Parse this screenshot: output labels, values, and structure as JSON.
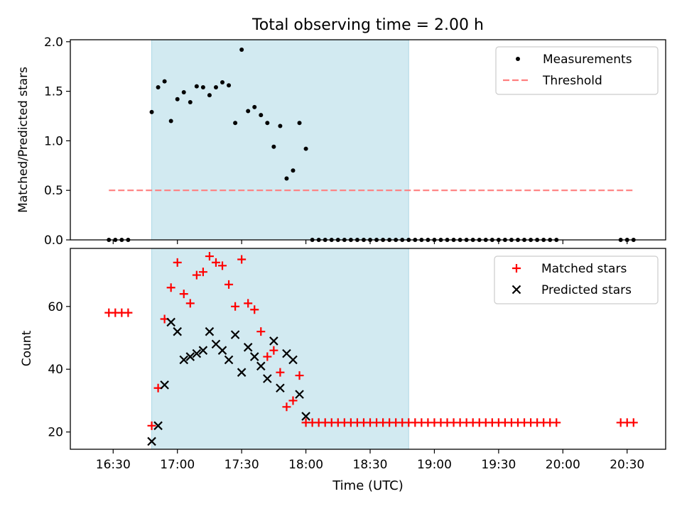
{
  "chart_data": {
    "type": "scatter",
    "title": "Total observing time = 2.00 h",
    "xlabel": "Time (UTC)",
    "x_ticks": [
      "16:30",
      "17:00",
      "17:30",
      "18:00",
      "18:30",
      "19:00",
      "19:30",
      "20:00",
      "20:30"
    ],
    "x_range": [
      "16:10",
      "20:48"
    ],
    "shaded_interval": [
      "16:48",
      "18:48"
    ],
    "shade_color": "#add8e6",
    "grid": false,
    "panels": [
      {
        "id": "ratio",
        "ylabel": "Matched/Predicted stars",
        "ylim": [
          0.0,
          2.02
        ],
        "y_ticks": [
          "0.0",
          "0.5",
          "1.0",
          "1.5",
          "2.0"
        ],
        "legend_position": "top-right",
        "threshold": {
          "name": "Threshold",
          "value": 0.5,
          "x_start": "16:28",
          "x_end": "20:33",
          "color": "#ff7f7f"
        },
        "series": [
          {
            "name": "Measurements",
            "marker": "dot",
            "color": "#000000",
            "x": [
              "16:28",
              "16:31",
              "16:34",
              "16:37",
              "16:48",
              "16:51",
              "16:54",
              "16:57",
              "17:00",
              "17:03",
              "17:06",
              "17:09",
              "17:12",
              "17:15",
              "17:18",
              "17:21",
              "17:24",
              "17:27",
              "17:30",
              "17:33",
              "17:36",
              "17:39",
              "17:42",
              "17:45",
              "17:48",
              "17:51",
              "17:54",
              "17:57",
              "18:00",
              "18:03",
              "18:06",
              "18:09",
              "18:12",
              "18:15",
              "18:18",
              "18:21",
              "18:24",
              "18:27",
              "18:30",
              "18:33",
              "18:36",
              "18:39",
              "18:42",
              "18:45",
              "18:48",
              "18:51",
              "18:54",
              "18:57",
              "19:00",
              "19:03",
              "19:06",
              "19:09",
              "19:12",
              "19:15",
              "19:18",
              "19:21",
              "19:24",
              "19:27",
              "19:30",
              "19:33",
              "19:36",
              "19:39",
              "19:42",
              "19:45",
              "19:48",
              "19:51",
              "19:54",
              "19:57",
              "20:27",
              "20:30",
              "20:33"
            ],
            "y": [
              0,
              0,
              0,
              0,
              1.29,
              1.54,
              1.6,
              1.2,
              1.42,
              1.49,
              1.39,
              1.55,
              1.54,
              1.46,
              1.54,
              1.59,
              1.56,
              1.18,
              1.92,
              1.3,
              1.34,
              1.26,
              1.18,
              0.94,
              1.15,
              0.62,
              0.7,
              1.18,
              0.92,
              0,
              0,
              0,
              0,
              0,
              0,
              0,
              0,
              0,
              0,
              0,
              0,
              0,
              0,
              0,
              0,
              0,
              0,
              0,
              0,
              0,
              0,
              0,
              0,
              0,
              0,
              0,
              0,
              0,
              0,
              0,
              0,
              0,
              0,
              0,
              0,
              0,
              0,
              0,
              0,
              0,
              0
            ]
          }
        ]
      },
      {
        "id": "counts",
        "ylabel": "Count",
        "ylim": [
          14.5,
          78.5
        ],
        "y_ticks": [
          "20",
          "40",
          "60"
        ],
        "legend_position": "top-right",
        "series": [
          {
            "name": "Matched stars",
            "marker": "plus",
            "color": "#ff0000",
            "x": [
              "16:28",
              "16:31",
              "16:34",
              "16:37",
              "16:48",
              "16:51",
              "16:54",
              "16:57",
              "17:00",
              "17:03",
              "17:06",
              "17:09",
              "17:12",
              "17:15",
              "17:18",
              "17:21",
              "17:24",
              "17:27",
              "17:30",
              "17:33",
              "17:36",
              "17:39",
              "17:42",
              "17:45",
              "17:48",
              "17:51",
              "17:54",
              "17:57",
              "18:00",
              "18:03",
              "18:06",
              "18:09",
              "18:12",
              "18:15",
              "18:18",
              "18:21",
              "18:24",
              "18:27",
              "18:30",
              "18:33",
              "18:36",
              "18:39",
              "18:42",
              "18:45",
              "18:48",
              "18:51",
              "18:54",
              "18:57",
              "19:00",
              "19:03",
              "19:06",
              "19:09",
              "19:12",
              "19:15",
              "19:18",
              "19:21",
              "19:24",
              "19:27",
              "19:30",
              "19:33",
              "19:36",
              "19:39",
              "19:42",
              "19:45",
              "19:48",
              "19:51",
              "19:54",
              "19:57",
              "20:27",
              "20:30",
              "20:33"
            ],
            "y": [
              58,
              58,
              58,
              58,
              22,
              34,
              56,
              66,
              74,
              64,
              61,
              70,
              71,
              76,
              74,
              73,
              67,
              60,
              75,
              61,
              59,
              52,
              44,
              46,
              39,
              28,
              30,
              38,
              23,
              23,
              23,
              23,
              23,
              23,
              23,
              23,
              23,
              23,
              23,
              23,
              23,
              23,
              23,
              23,
              23,
              23,
              23,
              23,
              23,
              23,
              23,
              23,
              23,
              23,
              23,
              23,
              23,
              23,
              23,
              23,
              23,
              23,
              23,
              23,
              23,
              23,
              23,
              23,
              23,
              23,
              23
            ]
          },
          {
            "name": "Predicted stars",
            "marker": "x",
            "color": "#000000",
            "x": [
              "16:48",
              "16:51",
              "16:54",
              "16:57",
              "17:00",
              "17:03",
              "17:06",
              "17:09",
              "17:12",
              "17:15",
              "17:18",
              "17:21",
              "17:24",
              "17:27",
              "17:30",
              "17:33",
              "17:36",
              "17:39",
              "17:42",
              "17:45",
              "17:48",
              "17:51",
              "17:54",
              "17:57",
              "18:00"
            ],
            "y": [
              17,
              22,
              35,
              55,
              52,
              43,
              44,
              45,
              46,
              52,
              48,
              46,
              43,
              51,
              39,
              47,
              44,
              41,
              37,
              49,
              34,
              45,
              43,
              32,
              25
            ]
          }
        ]
      }
    ]
  }
}
